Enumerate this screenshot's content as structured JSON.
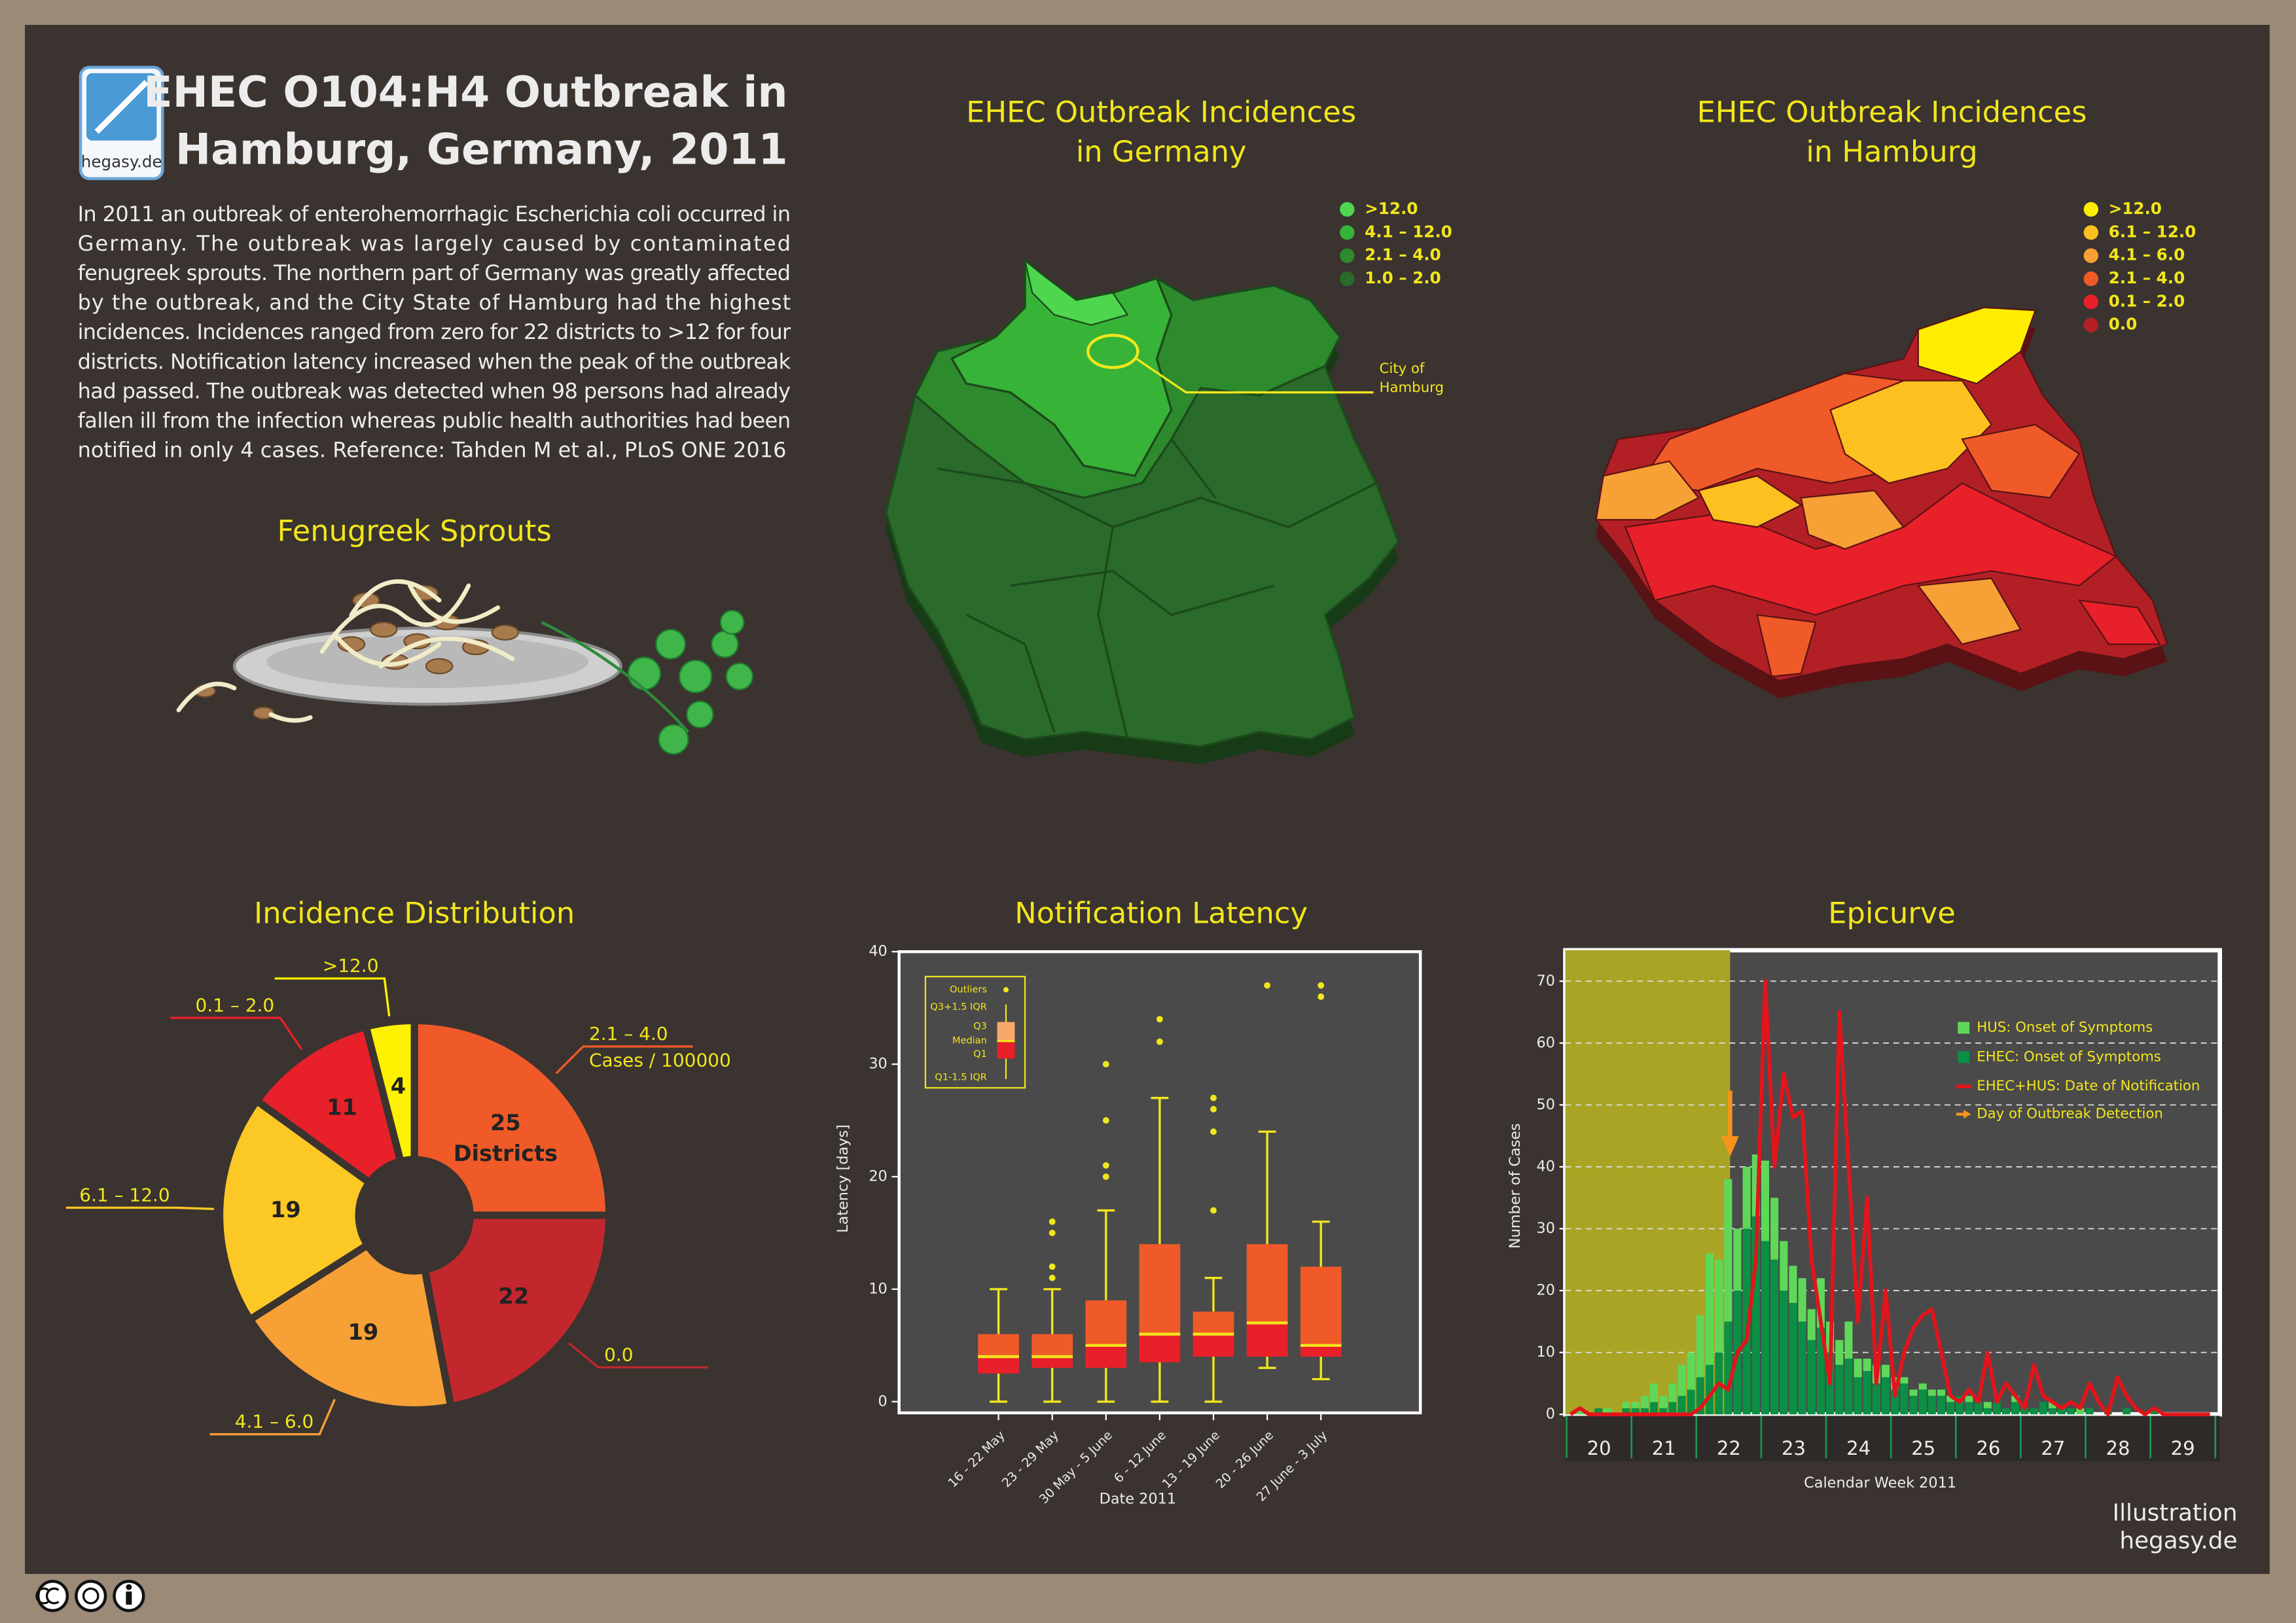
{
  "header": {
    "logo": "hegasy.de",
    "title": [
      "EHEC O104:H4 Outbreak in",
      "Hamburg, Germany, 2011"
    ],
    "paragraph": [
      "In 2011 an outbreak of enterohemorrhagic Escherichia coli occurred in",
      "Germany. The outbreak was largely caused by contaminated",
      "fenugreek sprouts. The northern part of Germany was greatly affected",
      "by the outbreak, and the City State of Hamburg had the highest",
      "incidences. Incidences ranged from zero for 22 districts to >12 for four",
      "districts. Notification latency increased when the peak of the outbreak",
      "had passed. The outbreak was detected when 98 persons had already",
      "fallen ill from the infection whereas public health authorities had been",
      "notified in only 4 cases. Reference: Tahden M et al., PLoS ONE 2016"
    ]
  },
  "sprouts": {
    "title": "Fenugreek Sprouts"
  },
  "maps": [
    {
      "title": [
        "EHEC Outbreak Incidences",
        "in Germany"
      ],
      "legend": [
        {
          "label": ">12.0",
          "color": "#4fd64f"
        },
        {
          "label": "4.1 – 12.0",
          "color": "#37b337"
        },
        {
          "label": "2.1 – 4.0",
          "color": "#2d8a2d"
        },
        {
          "label": "1.0 – 2.0",
          "color": "#2a6a2a"
        }
      ],
      "callout": [
        "City of",
        "Hamburg"
      ]
    },
    {
      "title": [
        "EHEC Outbreak Incidences",
        "in Hamburg"
      ],
      "legend": [
        {
          "label": ">12.0",
          "color": "#ffed00"
        },
        {
          "label": "6.1 – 12.0",
          "color": "#fcc020"
        },
        {
          "label": "4.1 – 6.0",
          "color": "#f7a035"
        },
        {
          "label": "2.1 – 4.0",
          "color": "#f05a28"
        },
        {
          "label": "0.1 – 2.0",
          "color": "#e8202a"
        },
        {
          "label": "0.0",
          "color": "#b22026"
        }
      ]
    }
  ],
  "chart_data": [
    {
      "type": "donut",
      "title": "Incidence Distribution",
      "categories": [
        "2.1 – 4.0",
        "0.0",
        "4.1 – 6.0",
        "6.1 – 12.0",
        "0.1 – 2.0",
        ">12.0"
      ],
      "values": [
        25,
        22,
        19,
        19,
        11,
        4
      ],
      "colors": [
        "#f05a28",
        "#c1272d",
        "#f7a035",
        "#fcc826",
        "#e8202a",
        "#fff200"
      ],
      "value_note": "Districts",
      "category_note": "Cases / 100000"
    },
    {
      "type": "box",
      "title": "Notification Latency",
      "ylabel": "Latency [days]",
      "xlabel": "Date 2011",
      "categories": [
        "16 - 22 May",
        "23 - 29 May",
        "30 May - 5 June",
        "6 - 12 June",
        "13 - 19 June",
        "20 - 26 June",
        "27 June - 3 July"
      ],
      "min": [
        0,
        0,
        0,
        0,
        0,
        3,
        2
      ],
      "q1": [
        2.5,
        3,
        3,
        3.5,
        4,
        4,
        4
      ],
      "median": [
        4,
        4,
        5,
        6,
        6,
        7,
        5
      ],
      "q3": [
        6,
        6,
        9,
        14,
        8,
        14,
        12
      ],
      "max": [
        10,
        10,
        17,
        27,
        11,
        24,
        16
      ],
      "outliers": [
        [],
        [
          11,
          12,
          15,
          16
        ],
        [
          20,
          21,
          25,
          30
        ],
        [
          32,
          34
        ],
        [
          17,
          24,
          26,
          27
        ],
        [
          37
        ],
        [
          36,
          37
        ]
      ],
      "ylim": [
        -1,
        40
      ],
      "yticks": [
        0,
        10,
        20,
        30,
        40
      ],
      "legend_labels": [
        "Outliers",
        "Q3+1.5 IQR",
        "Q3",
        "Median",
        "Q1",
        "Q1-1.5 IQR"
      ],
      "box_color": "#f05a28",
      "low_color": "#e8202a",
      "whisker_color": "#f2e61c"
    },
    {
      "type": "epicurve",
      "title": "Epicurve",
      "ylabel": "Number of Cases",
      "xlabel": "Calendar Week 2011",
      "week_labels": [
        "20",
        "21",
        "22",
        "23",
        "24",
        "25",
        "26",
        "27",
        "28",
        "29"
      ],
      "xlim": [
        19.98,
        30.07
      ],
      "xticks": [
        20,
        21,
        22,
        23,
        24,
        25,
        26,
        27,
        28,
        29,
        30
      ],
      "ylim": [
        0,
        75
      ],
      "yticks": [
        0,
        10,
        20,
        30,
        40,
        50,
        60,
        70
      ],
      "grid": true,
      "detection_x": 22.52,
      "detection_label": "Day of Outbreak Detection",
      "detection_color": "#f7941d",
      "x": [
        20,
        20.143,
        20.286,
        20.429,
        20.571,
        20.714,
        20.857,
        21,
        21.143,
        21.286,
        21.429,
        21.571,
        21.714,
        21.857,
        22,
        22.143,
        22.286,
        22.429,
        22.571,
        22.714,
        22.857,
        23,
        23.143,
        23.286,
        23.429,
        23.571,
        23.714,
        23.857,
        24,
        24.143,
        24.286,
        24.429,
        24.571,
        24.714,
        24.857,
        25,
        25.143,
        25.286,
        25.429,
        25.571,
        25.714,
        25.857,
        26,
        26.143,
        26.286,
        26.429,
        26.571,
        26.714,
        26.857,
        27,
        27.143,
        27.286,
        27.429,
        27.571,
        27.714,
        27.857,
        28,
        28.143,
        28.286,
        28.429,
        28.571,
        28.714,
        28.857,
        29,
        29.143,
        29.286,
        29.429,
        29.571,
        29.714,
        29.857
      ],
      "series": [
        {
          "name": "EHEC: Onset of Symptoms",
          "color": "#0b8f45",
          "values": [
            0,
            0,
            0,
            1,
            0,
            0,
            1,
            1,
            1,
            2,
            1,
            2,
            3,
            4,
            6,
            8,
            10,
            15,
            20,
            30,
            32,
            28,
            25,
            20,
            18,
            15,
            12,
            14,
            10,
            8,
            9,
            6,
            7,
            5,
            6,
            4,
            5,
            3,
            4,
            3,
            3,
            2,
            3,
            2,
            2,
            1,
            2,
            1,
            2,
            1,
            1,
            2,
            1,
            1,
            1,
            0,
            1,
            0,
            1,
            0,
            1,
            0,
            0,
            1,
            0,
            0,
            0,
            0,
            0,
            0
          ]
        },
        {
          "name": "HUS: Onset of Symptoms",
          "color": "#5fd85a",
          "values": [
            0,
            1,
            0,
            0,
            1,
            0,
            1,
            1,
            2,
            3,
            2,
            3,
            5,
            6,
            10,
            18,
            15,
            23,
            10,
            10,
            10,
            13,
            10,
            8,
            6,
            7,
            5,
            8,
            5,
            4,
            6,
            3,
            2,
            3,
            2,
            2,
            1,
            1,
            1,
            1,
            1,
            1,
            0,
            1,
            0,
            1,
            0,
            0,
            1,
            0,
            0,
            0,
            1,
            0,
            0,
            1,
            0,
            0,
            0,
            0,
            0,
            0,
            0,
            0,
            0,
            0,
            0,
            0,
            0,
            0
          ]
        },
        {
          "name": "EHEC+HUS: Date of Notification",
          "color": "#e3141b",
          "values": [
            0,
            1,
            0,
            0,
            0,
            0,
            0,
            0,
            0,
            0,
            0,
            0,
            0,
            0,
            1,
            3,
            5,
            4,
            10,
            12,
            25,
            70,
            40,
            55,
            48,
            49,
            25,
            15,
            5,
            65,
            40,
            15,
            35,
            5,
            20,
            3,
            10,
            14,
            16,
            17,
            10,
            3,
            2,
            4,
            2,
            10,
            2,
            5,
            3,
            1,
            8,
            3,
            2,
            1,
            2,
            1,
            5,
            2,
            0,
            6,
            3,
            1,
            0,
            1,
            0,
            0,
            0,
            0,
            0,
            0
          ]
        }
      ]
    }
  ],
  "footer": {
    "credit": [
      "Illustration",
      "hegasy.de"
    ]
  }
}
